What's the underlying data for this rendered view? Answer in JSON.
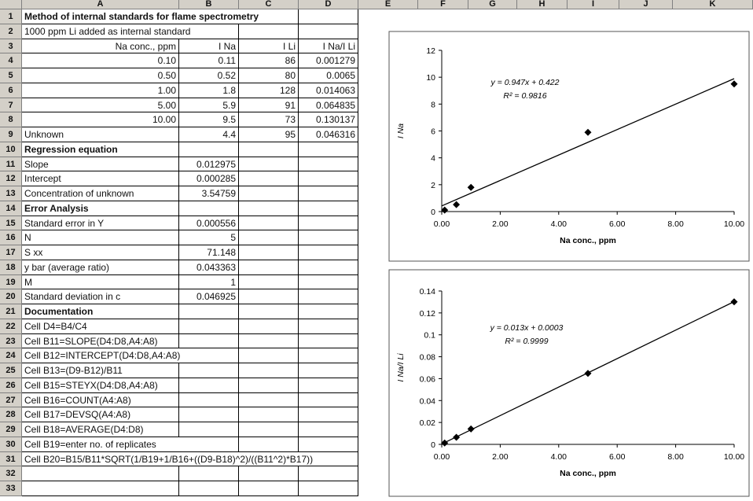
{
  "columns": [
    "A",
    "B",
    "C",
    "D",
    "E",
    "F",
    "G",
    "H",
    "I",
    "J",
    "K"
  ],
  "rows": [
    {
      "n": "1",
      "a": "Method of internal standards for flame spectrometry",
      "a_bold": true
    },
    {
      "n": "2",
      "a": "1000 ppm Li added as internal standard"
    },
    {
      "n": "3",
      "a": "Na conc., ppm",
      "a_right": true,
      "b": "I Na",
      "c": "I Li",
      "d": "I Na/I Li"
    },
    {
      "n": "4",
      "a": "0.10",
      "a_right": true,
      "b": "0.11",
      "c": "86",
      "d": "0.001279"
    },
    {
      "n": "5",
      "a": "0.50",
      "a_right": true,
      "b": "0.52",
      "c": "80",
      "d": "0.0065"
    },
    {
      "n": "6",
      "a": "1.00",
      "a_right": true,
      "b": "1.8",
      "c": "128",
      "d": "0.014063"
    },
    {
      "n": "7",
      "a": "5.00",
      "a_right": true,
      "b": "5.9",
      "c": "91",
      "d": "0.064835"
    },
    {
      "n": "8",
      "a": "10.00",
      "a_right": true,
      "b": "9.5",
      "c": "73",
      "d": "0.130137"
    },
    {
      "n": "9",
      "a": "Unknown",
      "b": "4.4",
      "c": "95",
      "d": "0.046316"
    },
    {
      "n": "10",
      "a": "Regression equation",
      "a_bold": true
    },
    {
      "n": "11",
      "a": "Slope",
      "b": "0.012975"
    },
    {
      "n": "12",
      "a": "Intercept",
      "b": "0.000285"
    },
    {
      "n": "13",
      "a": "Concentration of unknown",
      "b": "3.54759"
    },
    {
      "n": "14",
      "a": "Error Analysis",
      "a_bold": true
    },
    {
      "n": "15",
      "a": "Standard error in Y",
      "b": "0.000556"
    },
    {
      "n": "16",
      "a": "N",
      "b": "5"
    },
    {
      "n": "17",
      "a": "S xx",
      "b": "71.148"
    },
    {
      "n": "18",
      "a": "y bar (average ratio)",
      "b": "0.043363"
    },
    {
      "n": "19",
      "a": "M",
      "b": "1"
    },
    {
      "n": "20",
      "a": "Standard deviation in c",
      "b": "0.046925"
    },
    {
      "n": "21",
      "a": "Documentation",
      "a_bold": true
    },
    {
      "n": "22",
      "a": "Cell D4=B4/C4"
    },
    {
      "n": "23",
      "a": "Cell B11=SLOPE(D4:D8,A4:A8)"
    },
    {
      "n": "24",
      "a": "Cell B12=INTERCEPT(D4:D8,A4:A8)"
    },
    {
      "n": "25",
      "a": "Cell B13=(D9-B12)/B11"
    },
    {
      "n": "26",
      "a": "Cell B15=STEYX(D4:D8,A4:A8)"
    },
    {
      "n": "27",
      "a": "Cell B16=COUNT(A4:A8)"
    },
    {
      "n": "28",
      "a": "Cell B17=DEVSQ(A4:A8)"
    },
    {
      "n": "29",
      "a": "Cell B18=AVERAGE(D4:D8)"
    },
    {
      "n": "30",
      "a": "Cell B19=enter no. of replicates"
    },
    {
      "n": "31",
      "a": "Cell B20=B15/B11*SQRT(1/B19+1/B16+((D9-B18)^2)/((B11^2)*B17))"
    },
    {
      "n": "32",
      "a": ""
    },
    {
      "n": "33",
      "a": ""
    }
  ],
  "chart_data": [
    {
      "type": "scatter",
      "x": [
        0.1,
        0.5,
        1.0,
        5.0,
        10.0
      ],
      "y": [
        0.11,
        0.52,
        1.8,
        5.9,
        9.5
      ],
      "trendline": {
        "slope": 0.947,
        "intercept": 0.422
      },
      "equation": "y = 0.947x + 0.422",
      "r2": "R² = 0.9816",
      "xlabel": "Na conc., ppm",
      "ylabel": "I Na",
      "xlim": [
        0,
        10
      ],
      "ylim": [
        0,
        12
      ],
      "xticks": [
        "0.00",
        "2.00",
        "4.00",
        "6.00",
        "8.00",
        "10.00"
      ],
      "yticks": [
        "0",
        "2",
        "4",
        "6",
        "8",
        "10",
        "12"
      ]
    },
    {
      "type": "scatter",
      "x": [
        0.1,
        0.5,
        1.0,
        5.0,
        10.0
      ],
      "y": [
        0.001279,
        0.0065,
        0.014063,
        0.064835,
        0.130137
      ],
      "trendline": {
        "slope": 0.013,
        "intercept": 0.0003
      },
      "equation": "y = 0.013x + 0.0003",
      "r2": "R² = 0.9999",
      "xlabel": "Na conc., ppm",
      "ylabel": "I Na/I Li",
      "xlim": [
        0,
        10
      ],
      "ylim": [
        0,
        0.14
      ],
      "xticks": [
        "0.00",
        "2.00",
        "4.00",
        "6.00",
        "8.00",
        "10.00"
      ],
      "yticks": [
        "0",
        "0.02",
        "0.04",
        "0.06",
        "0.08",
        "0.1",
        "0.12",
        "0.14"
      ]
    }
  ]
}
